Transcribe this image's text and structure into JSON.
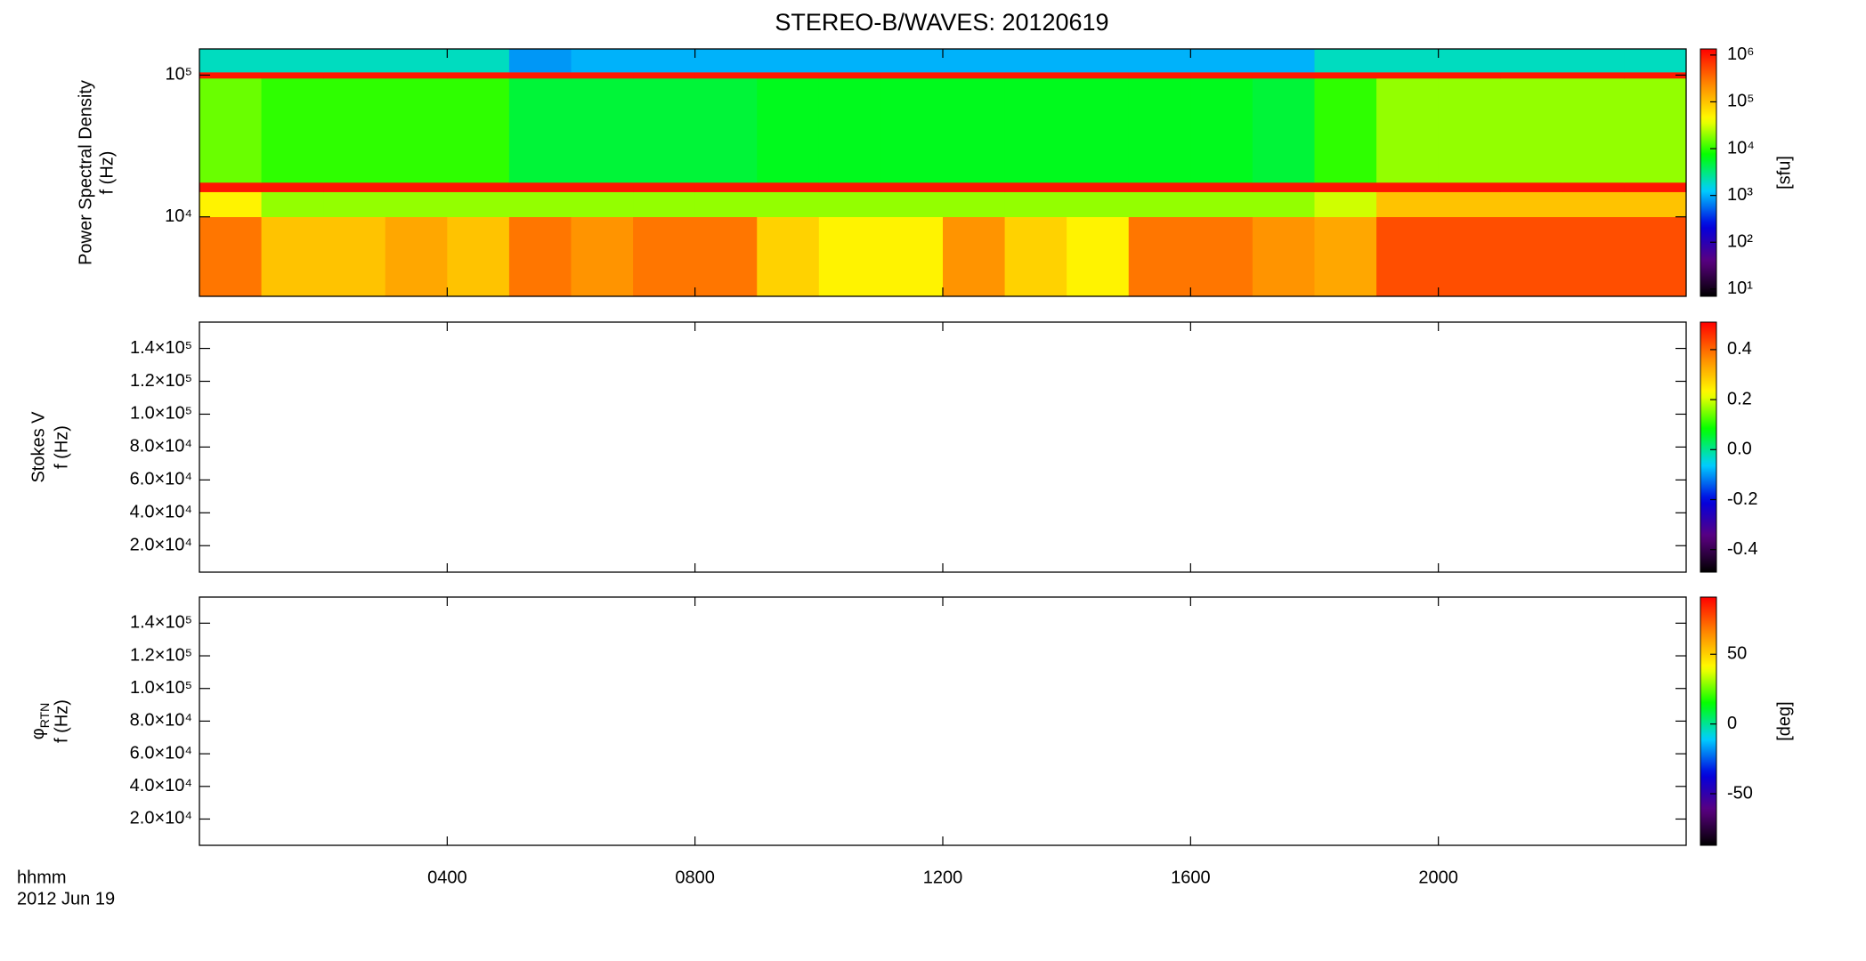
{
  "title": "STEREO-B/WAVES: 20120619",
  "time_label": "hhmm",
  "date_label": "2012 Jun 19",
  "chart_data": [
    {
      "type": "heatmap",
      "y_label": [
        "Power Spectral Density",
        "f (Hz)"
      ],
      "log_y": true,
      "xlim": [
        0,
        24
      ],
      "xticks": [
        {
          "value": 4,
          "label": "0400"
        },
        {
          "value": 8,
          "label": "0800"
        },
        {
          "value": 12,
          "label": "1200"
        },
        {
          "value": 16,
          "label": "1600"
        },
        {
          "value": 20,
          "label": "2000"
        }
      ],
      "ylim": [
        2750,
        153000
      ],
      "yticks": [
        {
          "value": 10000,
          "label": "10⁴"
        },
        {
          "value": 100000,
          "label": "10⁵"
        }
      ],
      "x_bins": [
        0,
        1,
        2,
        3,
        4,
        5,
        6,
        7,
        8,
        9,
        10,
        11,
        12,
        13,
        14,
        15,
        16,
        17,
        18,
        19,
        20,
        21,
        22,
        23,
        24
      ],
      "y_bins": [
        2750,
        10000,
        15000,
        17500,
        95000,
        105000,
        153000
      ],
      "values": [
        [
          300000,
          100000,
          100000,
          150000,
          100000,
          300000,
          200000,
          300000,
          300000,
          80000,
          50000,
          50000,
          200000,
          80000,
          50000,
          300000,
          300000,
          200000,
          150000,
          500000,
          500000,
          500000,
          500000,
          500000
        ],
        [
          50000,
          20000,
          20000,
          20000,
          20000,
          20000,
          20000,
          20000,
          20000,
          20000,
          20000,
          20000,
          20000,
          20000,
          20000,
          20000,
          20000,
          20000,
          30000,
          100000,
          100000,
          100000,
          100000,
          100000
        ],
        [
          1000000,
          1000000,
          1000000,
          1000000,
          1000000,
          1000000,
          1000000,
          1000000,
          1000000,
          1000000,
          1000000,
          1000000,
          1000000,
          1000000,
          1000000,
          1000000,
          1000000,
          1000000,
          1000000,
          1000000,
          1000000,
          1000000,
          1000000,
          1000000
        ],
        [
          15000,
          10000,
          10000,
          10000,
          10000,
          5000,
          5000,
          5000,
          5000,
          6000,
          6000,
          6000,
          6000,
          6000,
          6000,
          6000,
          6000,
          5000,
          10000,
          20000,
          20000,
          20000,
          20000,
          20000
        ],
        [
          1000000,
          1000000,
          1000000,
          1000000,
          1000000,
          1000000,
          1000000,
          1000000,
          1000000,
          1000000,
          1000000,
          1000000,
          1000000,
          1000000,
          1000000,
          1000000,
          1000000,
          1000000,
          1000000,
          1000000,
          1000000,
          1000000,
          1000000,
          1000000
        ],
        [
          2000,
          2000,
          2000,
          2000,
          2000,
          800,
          1000,
          1000,
          1000,
          1000,
          1000,
          1000,
          1000,
          1000,
          1000,
          1000,
          1000,
          1000,
          2000,
          2000,
          2000,
          2000,
          2000,
          2000
        ]
      ],
      "colorbar": {
        "log": true,
        "lim": [
          7,
          1350000
        ],
        "label": "[sfu]",
        "ticks": [
          {
            "value": 10,
            "label": "10¹"
          },
          {
            "value": 100,
            "label": "10²"
          },
          {
            "value": 1000,
            "label": "10³"
          },
          {
            "value": 10000,
            "label": "10⁴"
          },
          {
            "value": 100000,
            "label": "10⁵"
          },
          {
            "value": 1000000,
            "label": "10⁶"
          }
        ],
        "colormap": [
          "#000000",
          "#5a0080",
          "#0000e0",
          "#00d0ff",
          "#00ff00",
          "#ffff00",
          "#ff8800",
          "#ff0000"
        ]
      }
    },
    {
      "type": "heatmap",
      "y_label": [
        "Stokes V",
        "f (Hz)"
      ],
      "log_y": false,
      "xlim": [
        0,
        24
      ],
      "xticks": [
        {
          "value": 4,
          "label": "0400"
        },
        {
          "value": 8,
          "label": "0800"
        },
        {
          "value": 12,
          "label": "1200"
        },
        {
          "value": 16,
          "label": "1600"
        },
        {
          "value": 20,
          "label": "2000"
        }
      ],
      "ylim": [
        3900,
        156000
      ],
      "yticks": [
        {
          "value": 20000,
          "label": "2.0×10⁴"
        },
        {
          "value": 40000,
          "label": "4.0×10⁴"
        },
        {
          "value": 60000,
          "label": "6.0×10⁴"
        },
        {
          "value": 80000,
          "label": "8.0×10⁴"
        },
        {
          "value": 100000,
          "label": "1.0×10⁵"
        },
        {
          "value": 120000,
          "label": "1.2×10⁵"
        },
        {
          "value": 140000,
          "label": "1.4×10⁵"
        }
      ],
      "colorbar": {
        "log": false,
        "lim": [
          -0.49,
          0.51
        ],
        "ticks": [
          -0.4,
          -0.2,
          {
            "value": 0,
            "label": "0.0"
          },
          0.2,
          0.4
        ],
        "colormap": [
          "#000000",
          "#5a0080",
          "#0000e0",
          "#00d0ff",
          "#00ff00",
          "#ffff00",
          "#ff8800",
          "#ff0000"
        ]
      }
    },
    {
      "type": "heatmap",
      "y_label_symbol": "φ",
      "y_label_subscript": "RTN",
      "y_label": [
        "f (Hz)"
      ],
      "log_y": false,
      "xlim": [
        0,
        24
      ],
      "xticks": [
        {
          "value": 4,
          "label": "0400"
        },
        {
          "value": 8,
          "label": "0800"
        },
        {
          "value": 12,
          "label": "1200"
        },
        {
          "value": 16,
          "label": "1600"
        },
        {
          "value": 20,
          "label": "2000"
        }
      ],
      "ylim": [
        3900,
        156000
      ],
      "yticks": [
        {
          "value": 20000,
          "label": "2.0×10⁴"
        },
        {
          "value": 40000,
          "label": "4.0×10⁴"
        },
        {
          "value": 60000,
          "label": "6.0×10⁴"
        },
        {
          "value": 80000,
          "label": "8.0×10⁴"
        },
        {
          "value": 100000,
          "label": "1.0×10⁵"
        },
        {
          "value": 120000,
          "label": "1.2×10⁵"
        },
        {
          "value": 140000,
          "label": "1.4×10⁵"
        }
      ],
      "colorbar": {
        "log": false,
        "lim": [
          -87,
          91
        ],
        "label": "[deg]",
        "ticks": [
          -50,
          0,
          50
        ],
        "colormap": [
          "#000000",
          "#5a0080",
          "#0000e0",
          "#00d0ff",
          "#00ff00",
          "#ffff00",
          "#ff8800",
          "#ff0000"
        ]
      }
    }
  ]
}
